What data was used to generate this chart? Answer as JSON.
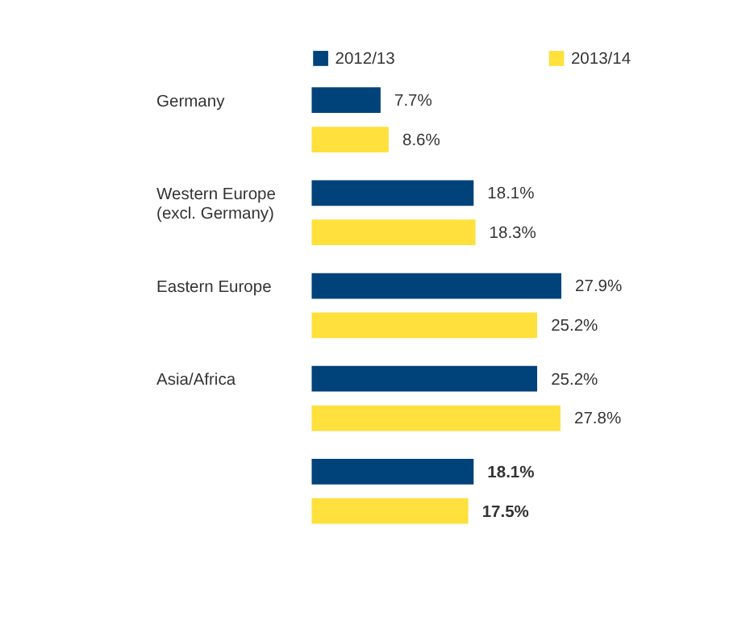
{
  "chart_data": {
    "type": "bar",
    "orientation": "horizontal",
    "categories": [
      "Germany",
      "Western Europe\n(excl. Germany)",
      "Eastern Europe",
      "Asia/Africa",
      null
    ],
    "series": [
      {
        "name": "2012/13",
        "color": "#00427a",
        "values": [
          7.7,
          18.1,
          27.9,
          25.2,
          18.1
        ],
        "value_labels": [
          "7.7%",
          "18.1%",
          "27.9%",
          "25.2%",
          "18.1%"
        ]
      },
      {
        "name": "2013/14",
        "color": "#ffe03c",
        "values": [
          8.6,
          18.3,
          25.2,
          27.8,
          17.5
        ],
        "value_labels": [
          "8.6%",
          "18.3%",
          "25.2%",
          "27.8%",
          "17.5%"
        ]
      }
    ],
    "legend": "top"
  }
}
